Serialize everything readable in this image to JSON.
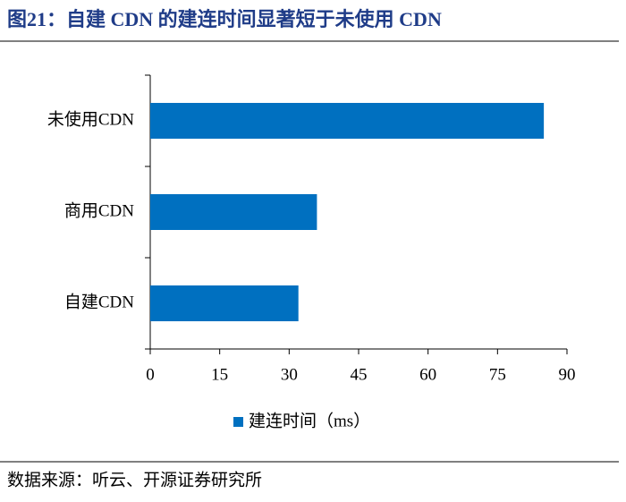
{
  "chart_data": {
    "type": "hbar",
    "title": "图21：自建 CDN 的建连时间显著短于未使用 CDN",
    "categories": [
      "未使用CDN",
      "商用CDN",
      "自建CDN"
    ],
    "series": [
      {
        "name": "建连时间（ms）",
        "color": "#0070c0",
        "values": [
          85,
          36,
          32
        ]
      }
    ],
    "xlim": [
      0,
      90
    ],
    "xticks": [
      0,
      15,
      30,
      45,
      60,
      75,
      90
    ],
    "legend": "bottom",
    "source": "数据来源：听云、开源证券研究所"
  }
}
